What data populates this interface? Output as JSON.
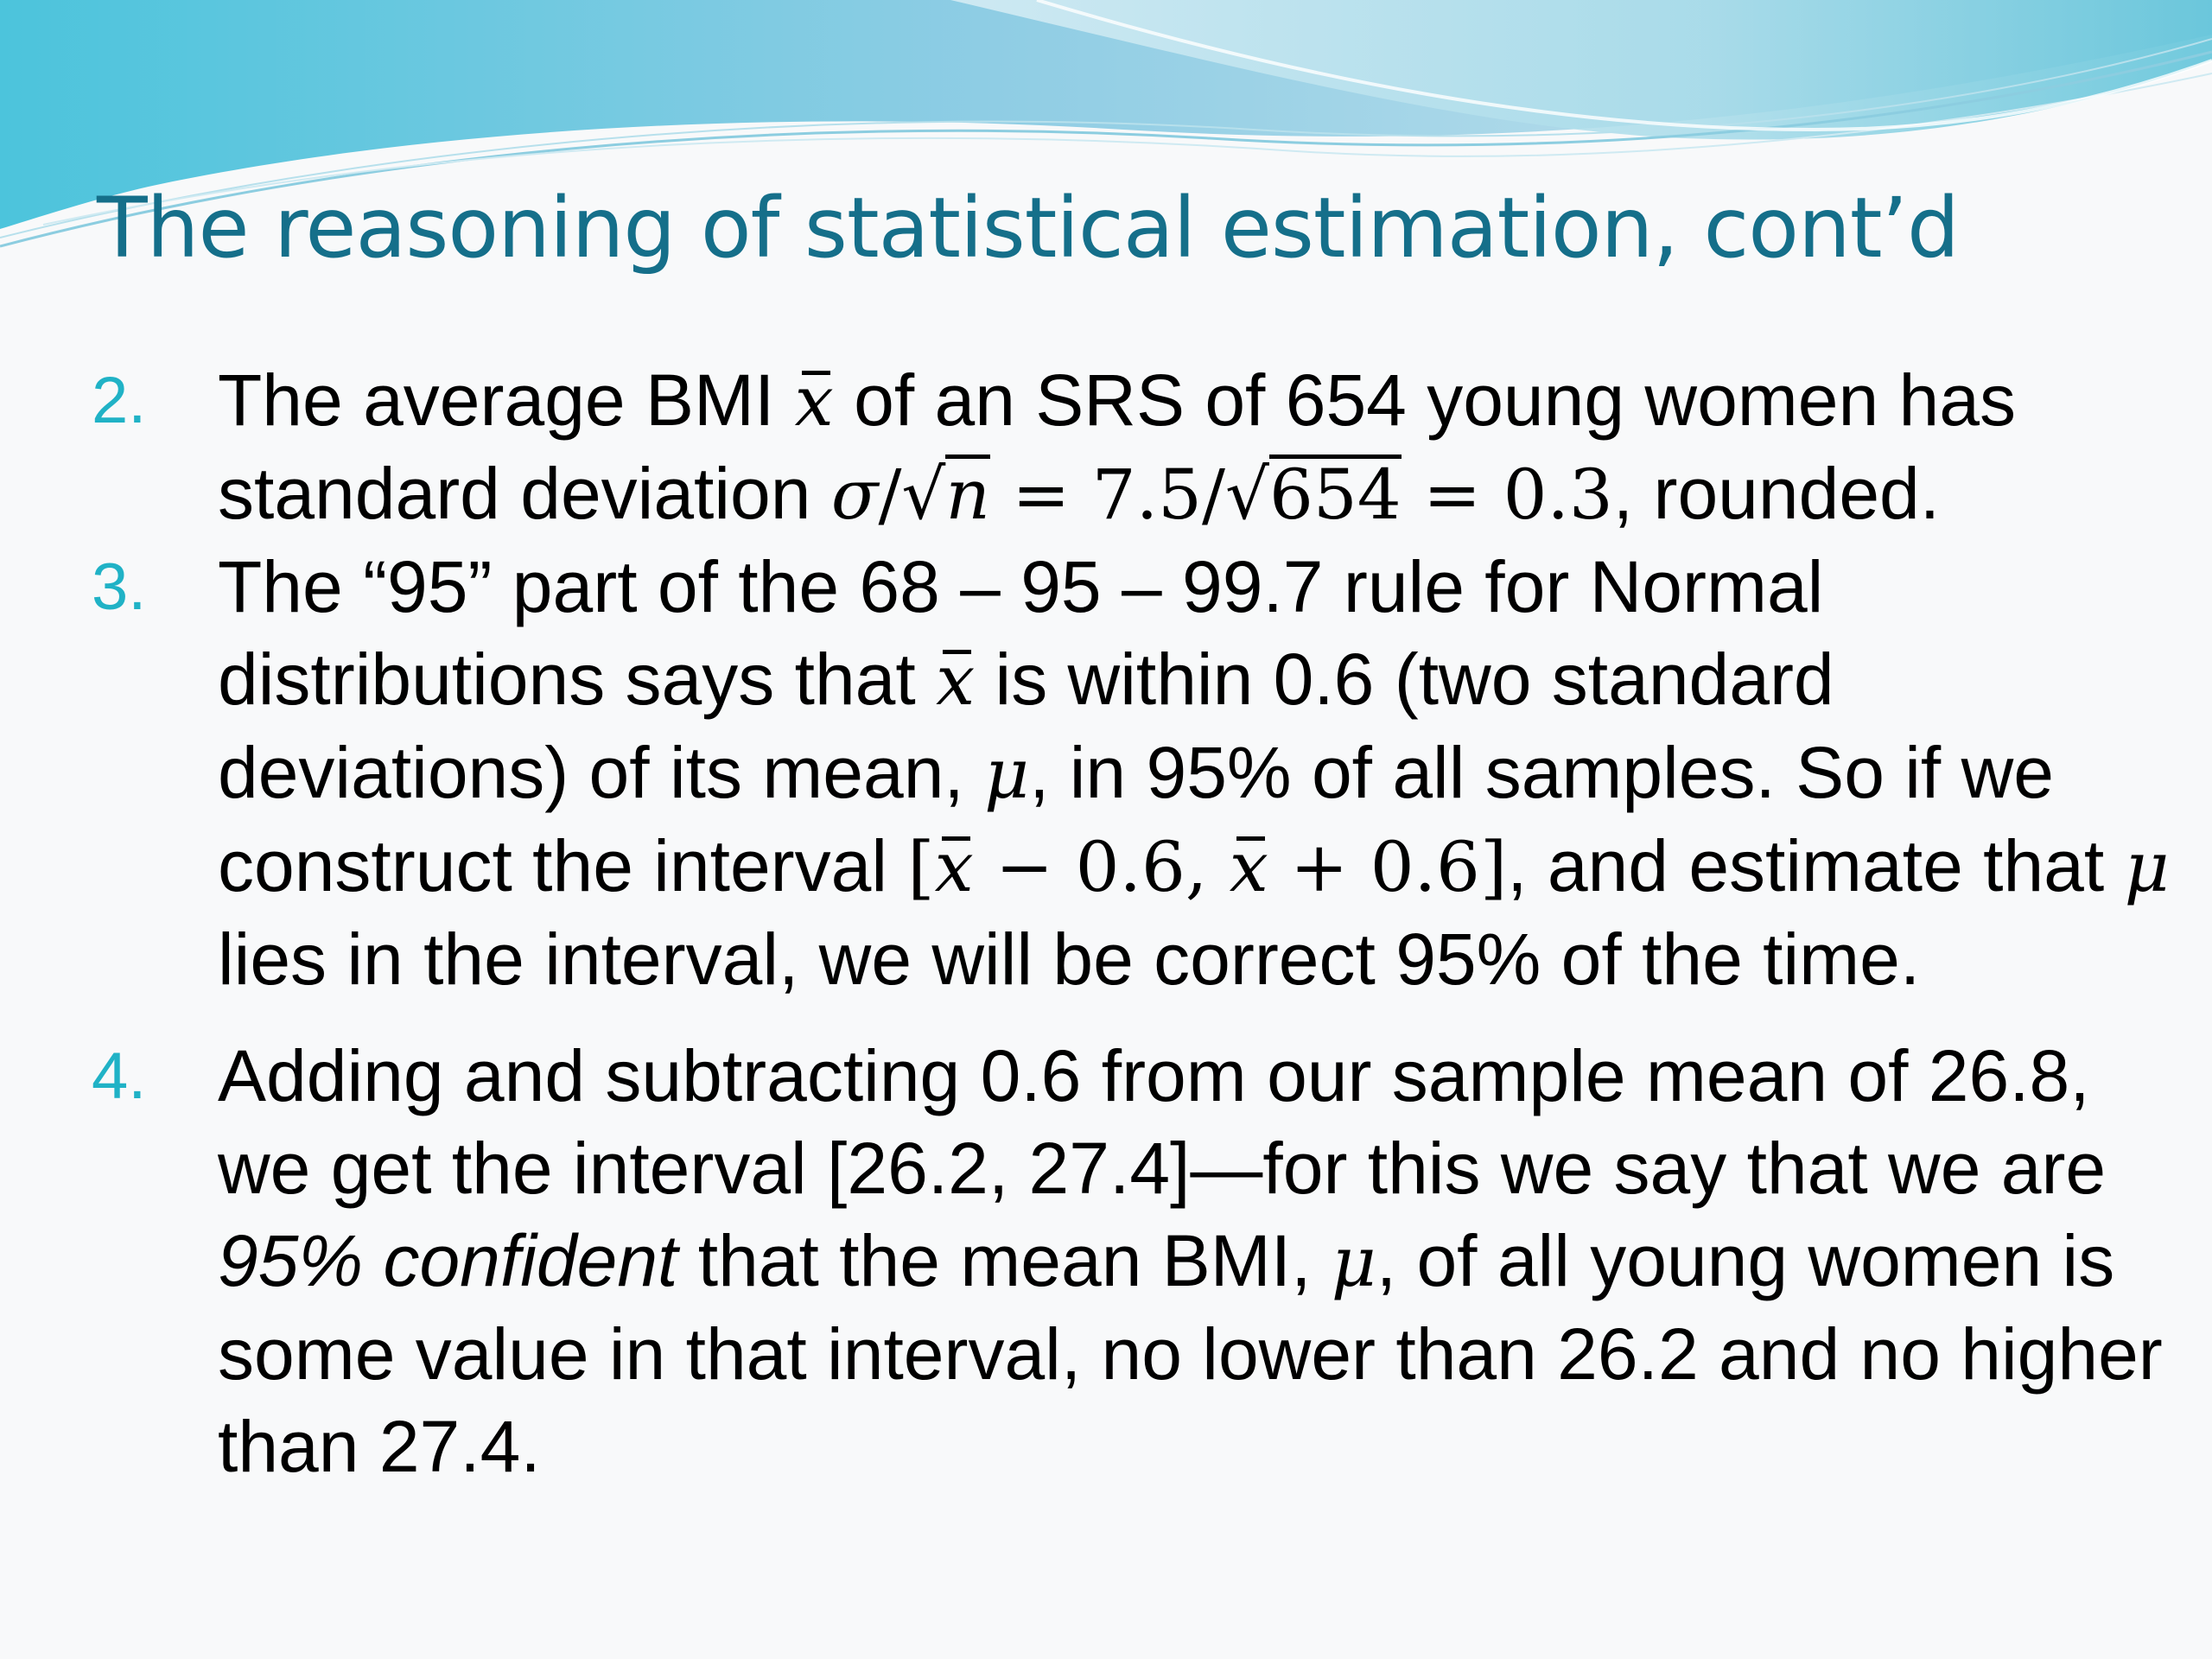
{
  "title": "The reasoning of statistical estimation, cont’d",
  "items": [
    {
      "number": "2.",
      "text_a": "The average BMI ",
      "text_b": " of an SRS of 654 young women has standard deviation ",
      "text_c": ", rounded.",
      "xbar": "x",
      "sigma": "σ",
      "slash": "/",
      "sqrt_sign": "√",
      "n": "n",
      "eq1": " = 7.5/",
      "sqrt_val": "654",
      "eq2": " = 0.3"
    },
    {
      "number": "3.",
      "text_a": "The “95” part of the 68 – 95 – 99.7 rule for Normal distributions says that ",
      "xbar": "x",
      "text_b": " is within 0.6 (two standard deviations) of its mean, ",
      "mu": "μ",
      "text_c": ", in 95% of all samples.  So if we construct the interval ",
      "interval_open": "[",
      "interval_minus": " − 0.6, ",
      "interval_plus": " + 0.6]",
      "text_d": ", and estimate that ",
      "text_e": " lies in the interval, we will be correct 95% of the time."
    },
    {
      "number": "4.",
      "text_a": "Adding and subtracting 0.6 from our sample mean of 26.8, we get the interval [26.2, 27.4]—for this we say that we are ",
      "emphasis": "95% confident",
      "text_b": " that the mean BMI, ",
      "mu": "μ",
      "text_c": ", of all young women is some value in that interval, no lower than 26.2 and no higher than 27.4."
    }
  ],
  "colors": {
    "title": "#156f8a",
    "number": "#20b2c6",
    "banner_light": "#bfe6ef",
    "banner_dark": "#4fb5d3"
  }
}
